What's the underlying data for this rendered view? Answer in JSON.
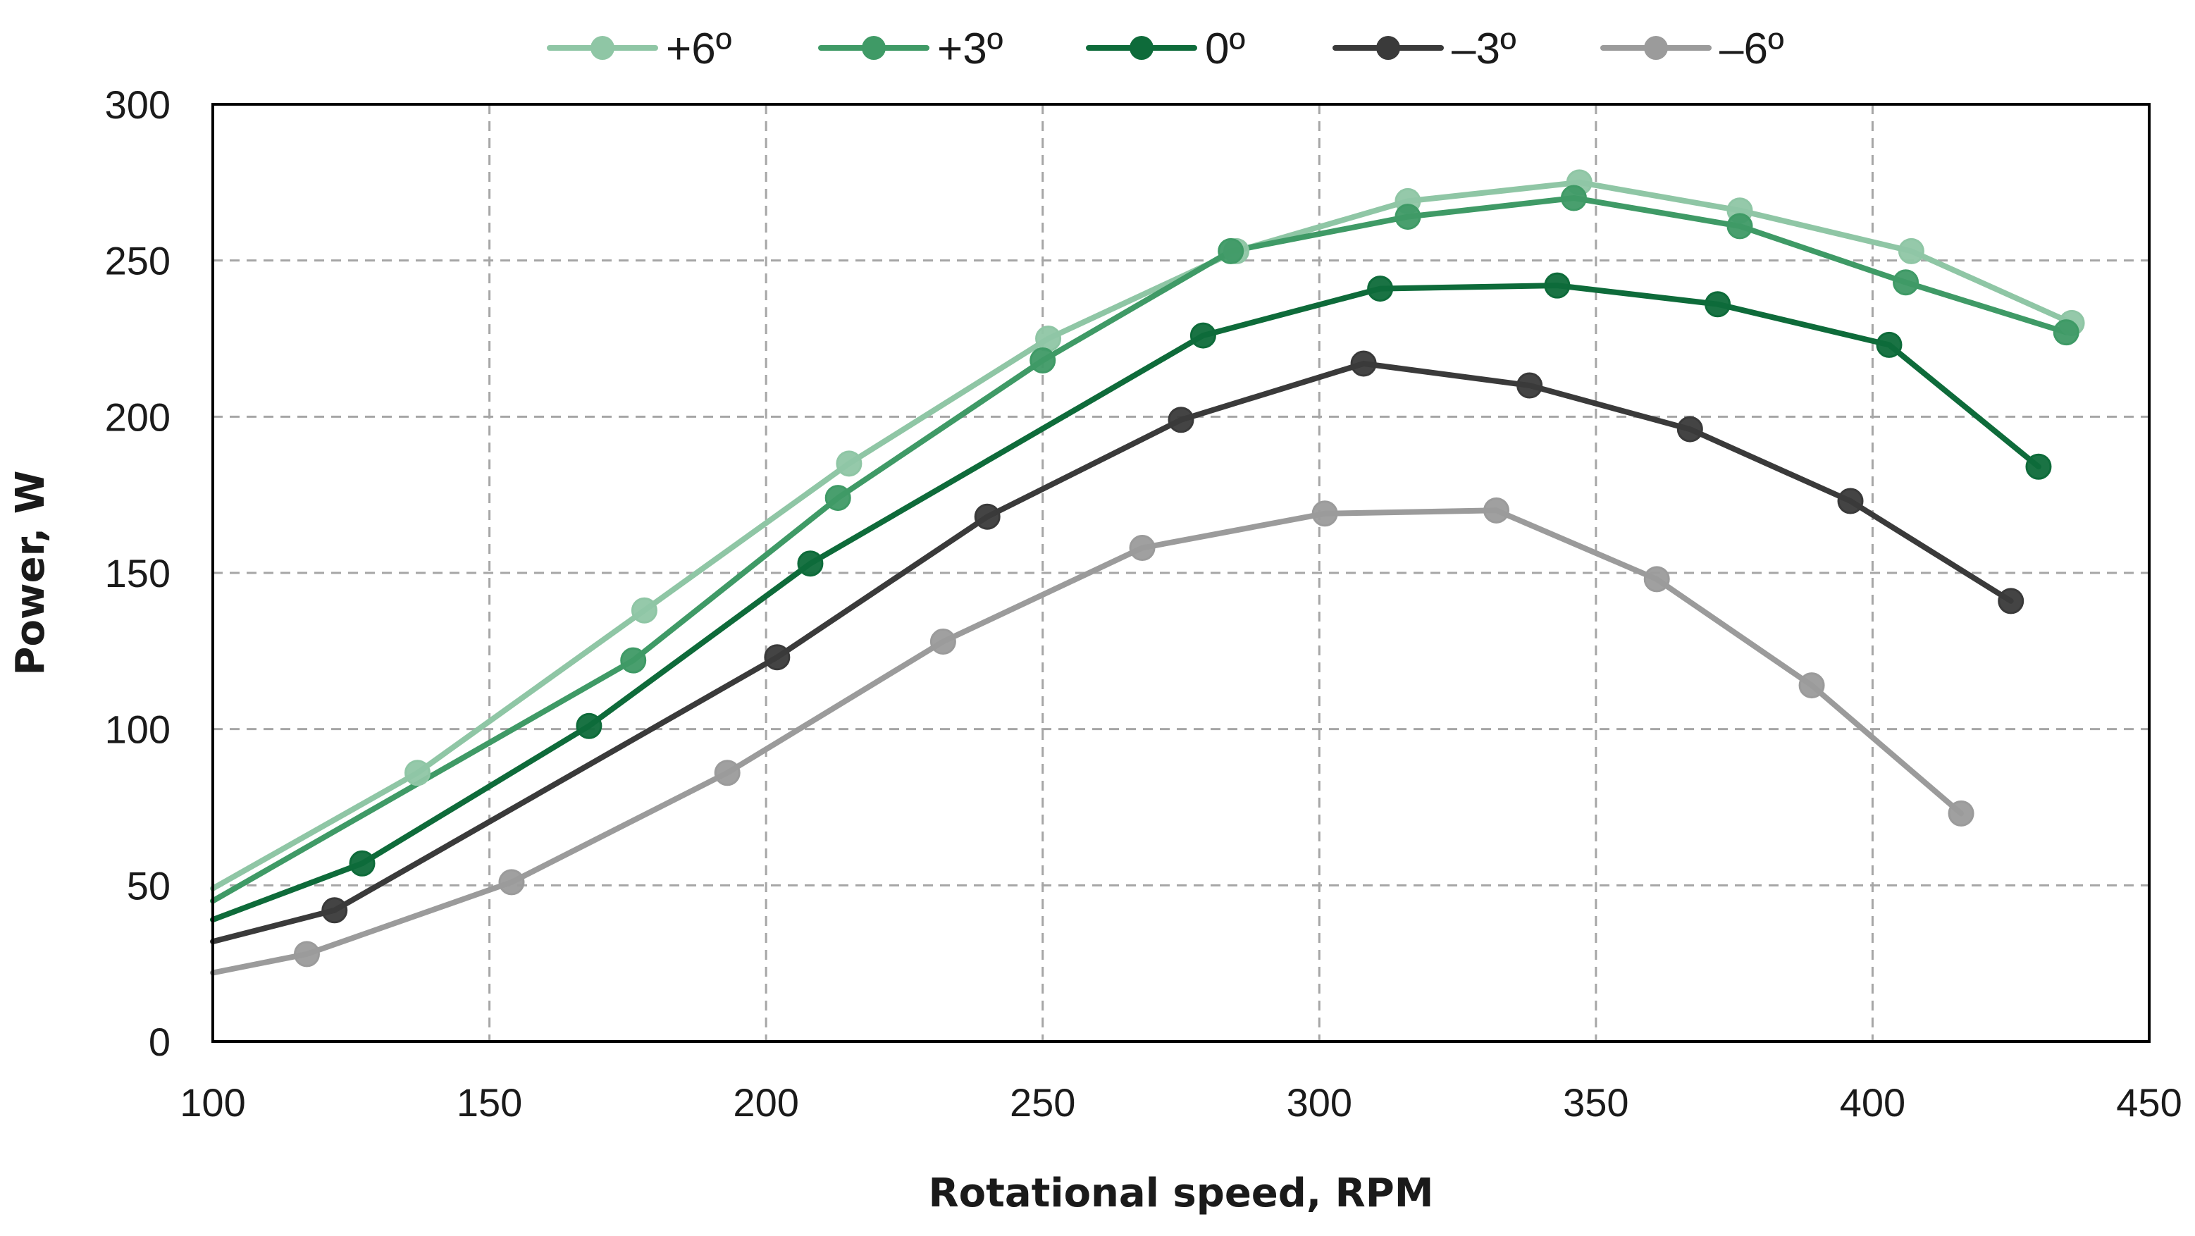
{
  "chart_data": {
    "type": "line",
    "title": "",
    "xlabel": "Rotational speed, RPM",
    "ylabel": "Power, W",
    "xlim": [
      100,
      450
    ],
    "ylim": [
      0,
      300
    ],
    "xticks": [
      100,
      150,
      200,
      250,
      300,
      350,
      400,
      450
    ],
    "yticks": [
      0,
      50,
      100,
      150,
      200,
      250,
      300
    ],
    "grid": true,
    "legend_position": "top-center",
    "series": [
      {
        "name": "+6º",
        "color": "#8fc6a5",
        "x": [
          100,
          137,
          178,
          215,
          251,
          285,
          316,
          347,
          376,
          407,
          436
        ],
        "y": [
          49,
          86,
          138,
          185,
          225,
          253,
          269,
          275,
          266,
          253,
          230
        ],
        "markers": [
          false,
          true,
          true,
          true,
          true,
          true,
          true,
          true,
          true,
          true,
          true
        ]
      },
      {
        "name": "+3º",
        "color": "#3f9a66",
        "x": [
          100,
          176,
          213,
          250,
          284,
          316,
          346,
          376,
          406,
          435
        ],
        "y": [
          45,
          122,
          174,
          218,
          253,
          264,
          270,
          261,
          243,
          227
        ],
        "markers": [
          false,
          true,
          true,
          true,
          true,
          true,
          true,
          true,
          true,
          true
        ]
      },
      {
        "name": "0º",
        "color": "#0e6b3a",
        "x": [
          100,
          127,
          168,
          208,
          279,
          311,
          343,
          372,
          403,
          430
        ],
        "y": [
          39,
          57,
          101,
          153,
          226,
          241,
          242,
          236,
          223,
          184
        ],
        "markers": [
          false,
          true,
          true,
          true,
          true,
          true,
          true,
          true,
          true,
          true
        ]
      },
      {
        "name": "–3º",
        "color": "#3a3a3a",
        "x": [
          100,
          122,
          202,
          240,
          275,
          308,
          338,
          367,
          396,
          425
        ],
        "y": [
          32,
          42,
          123,
          168,
          199,
          217,
          210,
          196,
          173,
          141
        ],
        "markers": [
          false,
          true,
          true,
          true,
          true,
          true,
          true,
          true,
          true,
          true
        ]
      },
      {
        "name": "–6º",
        "color": "#9b9b9b",
        "x": [
          100,
          117,
          154,
          193,
          232,
          268,
          301,
          332,
          361,
          389,
          416
        ],
        "y": [
          22,
          28,
          51,
          86,
          128,
          158,
          169,
          170,
          148,
          114,
          73
        ],
        "markers": [
          false,
          true,
          true,
          true,
          true,
          true,
          true,
          true,
          true,
          true,
          true
        ]
      }
    ]
  }
}
